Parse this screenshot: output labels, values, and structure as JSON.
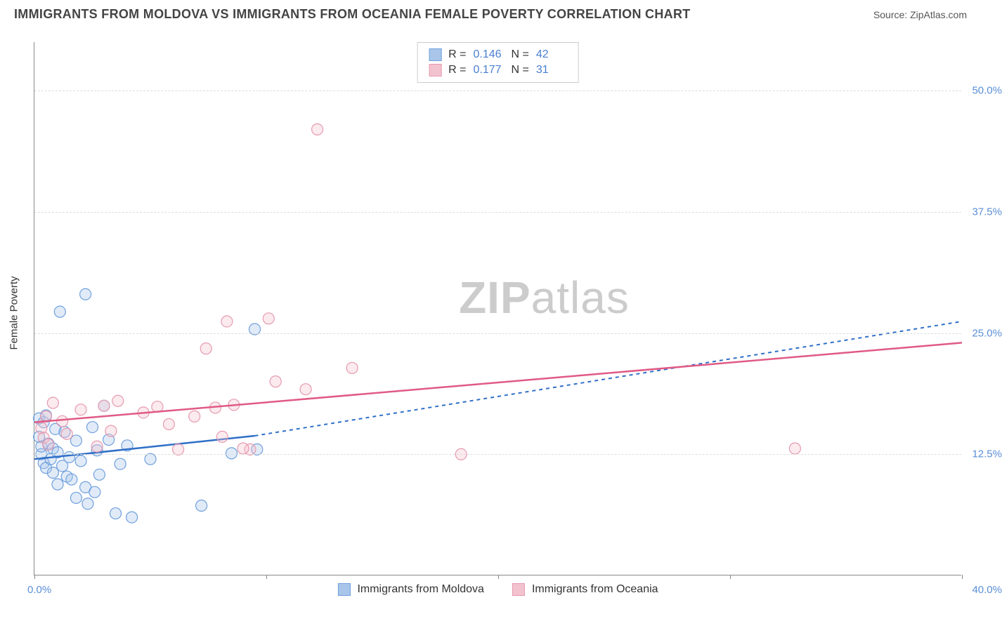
{
  "title": "IMMIGRANTS FROM MOLDOVA VS IMMIGRANTS FROM OCEANIA FEMALE POVERTY CORRELATION CHART",
  "source": "Source: ZipAtlas.com",
  "watermark": "ZIPatlas",
  "y_axis_label": "Female Poverty",
  "chart": {
    "type": "scatter",
    "xlim": [
      0,
      40
    ],
    "ylim": [
      0,
      55
    ],
    "x_tick_positions": [
      0,
      10,
      20,
      30,
      40
    ],
    "x_limit_labels": [
      "0.0%",
      "40.0%"
    ],
    "y_ticks": [
      {
        "v": 12.5,
        "label": "12.5%"
      },
      {
        "v": 25.0,
        "label": "25.0%"
      },
      {
        "v": 37.5,
        "label": "37.5%"
      },
      {
        "v": 50.0,
        "label": "50.0%"
      }
    ],
    "grid_color": "#dddddd",
    "axis_color": "#888888",
    "tick_label_color": "#5b8fd6",
    "background_color": "#ffffff",
    "marker_radius": 8,
    "marker_stroke_width": 1.2,
    "marker_fill_opacity": 0.35,
    "series": [
      {
        "key": "moldova",
        "label": "Immigrants from Moldova",
        "color_stroke": "#6fa0dd",
        "color_fill": "#a9c6ea",
        "line_color": "#2f6fc7",
        "line_dash_ext": "5,5",
        "R": "0.146",
        "N": "42",
        "trend": {
          "x0": 0,
          "y0": 12.0,
          "x_solid_end": 9.5,
          "y_solid_end": 14.4,
          "x1": 40,
          "y1": 26.2
        },
        "points": [
          [
            0.2,
            16.2
          ],
          [
            0.2,
            14.3
          ],
          [
            0.3,
            12.5
          ],
          [
            0.3,
            13.3
          ],
          [
            0.4,
            15.8
          ],
          [
            0.4,
            11.6
          ],
          [
            0.5,
            11.1
          ],
          [
            0.5,
            16.5
          ],
          [
            0.6,
            13.6
          ],
          [
            0.7,
            12.0
          ],
          [
            0.8,
            10.6
          ],
          [
            0.8,
            13.1
          ],
          [
            0.9,
            15.1
          ],
          [
            1.0,
            9.4
          ],
          [
            1.0,
            12.7
          ],
          [
            1.1,
            27.2
          ],
          [
            1.2,
            11.3
          ],
          [
            1.3,
            14.8
          ],
          [
            1.4,
            10.2
          ],
          [
            1.5,
            12.2
          ],
          [
            1.6,
            9.9
          ],
          [
            1.8,
            13.9
          ],
          [
            1.8,
            8.0
          ],
          [
            2.0,
            11.8
          ],
          [
            2.2,
            9.1
          ],
          [
            2.2,
            29.0
          ],
          [
            2.3,
            7.4
          ],
          [
            2.5,
            15.3
          ],
          [
            2.6,
            8.6
          ],
          [
            2.7,
            12.9
          ],
          [
            2.8,
            10.4
          ],
          [
            3.0,
            17.5
          ],
          [
            3.2,
            14.0
          ],
          [
            3.5,
            6.4
          ],
          [
            3.7,
            11.5
          ],
          [
            4.0,
            13.4
          ],
          [
            4.2,
            6.0
          ],
          [
            5.0,
            12.0
          ],
          [
            7.2,
            7.2
          ],
          [
            8.5,
            12.6
          ],
          [
            9.5,
            25.4
          ],
          [
            9.6,
            13.0
          ]
        ]
      },
      {
        "key": "oceania",
        "label": "Immigrants from Oceania",
        "color_stroke": "#e69ab0",
        "color_fill": "#f3c2cf",
        "line_color": "#e05a85",
        "R": "0.177",
        "N": "31",
        "trend": {
          "x0": 0,
          "y0": 15.8,
          "x1": 40,
          "y1": 24.0
        },
        "points": [
          [
            0.3,
            15.2
          ],
          [
            0.4,
            14.2
          ],
          [
            0.5,
            16.4
          ],
          [
            0.6,
            13.5
          ],
          [
            0.8,
            17.8
          ],
          [
            1.2,
            15.9
          ],
          [
            1.4,
            14.6
          ],
          [
            2.0,
            17.1
          ],
          [
            2.7,
            13.3
          ],
          [
            3.0,
            17.5
          ],
          [
            3.3,
            14.9
          ],
          [
            3.6,
            18.0
          ],
          [
            4.7,
            16.8
          ],
          [
            5.3,
            17.4
          ],
          [
            5.8,
            15.6
          ],
          [
            6.2,
            13.0
          ],
          [
            6.9,
            16.4
          ],
          [
            7.4,
            23.4
          ],
          [
            7.8,
            17.3
          ],
          [
            8.1,
            14.3
          ],
          [
            8.3,
            26.2
          ],
          [
            8.6,
            17.6
          ],
          [
            9.3,
            13.0
          ],
          [
            10.1,
            26.5
          ],
          [
            10.4,
            20.0
          ],
          [
            11.7,
            19.2
          ],
          [
            12.2,
            46.0
          ],
          [
            13.7,
            21.4
          ],
          [
            18.4,
            12.5
          ],
          [
            32.8,
            13.1
          ],
          [
            9.0,
            13.1
          ]
        ]
      }
    ],
    "stats_box": {
      "r_label": "R =",
      "n_label": "N ="
    },
    "legend_swatch_size": 18
  }
}
